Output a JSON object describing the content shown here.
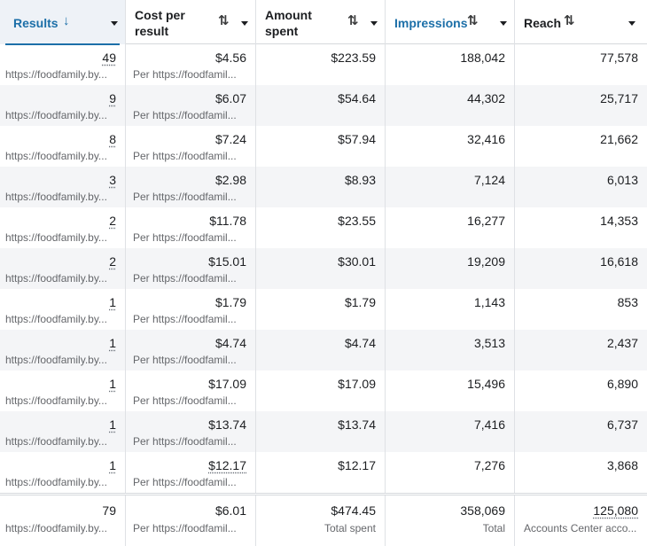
{
  "header": {
    "columns": [
      {
        "label": "Results",
        "sort_icon": "arrow-down-icon"
      },
      {
        "label": "Cost per result",
        "sort_icon": "sort-up-down-icon"
      },
      {
        "label": "Amount spent",
        "sort_icon": "sort-up-down-icon"
      },
      {
        "label": "Impressions",
        "sort_icon": "sort-up-down-icon"
      },
      {
        "label": "Reach",
        "sort_icon": "sort-up-down-icon"
      }
    ],
    "arrow_down": "↓",
    "sort_glyph": "⇅"
  },
  "rows": [
    {
      "results": "49",
      "results_sub": "https://foodfamily.by...",
      "cost": "$4.56",
      "cost_sub": "Per https://foodfamil...",
      "spent": "$223.59",
      "impressions": "188,042",
      "reach": "77,578"
    },
    {
      "results": "9",
      "results_sub": "https://foodfamily.by...",
      "cost": "$6.07",
      "cost_sub": "Per https://foodfamil...",
      "spent": "$54.64",
      "impressions": "44,302",
      "reach": "25,717"
    },
    {
      "results": "8",
      "results_sub": "https://foodfamily.by...",
      "cost": "$7.24",
      "cost_sub": "Per https://foodfamil...",
      "spent": "$57.94",
      "impressions": "32,416",
      "reach": "21,662"
    },
    {
      "results": "3",
      "results_sub": "https://foodfamily.by...",
      "cost": "$2.98",
      "cost_sub": "Per https://foodfamil...",
      "spent": "$8.93",
      "impressions": "7,124",
      "reach": "6,013"
    },
    {
      "results": "2",
      "results_sub": "https://foodfamily.by...",
      "cost": "$11.78",
      "cost_sub": "Per https://foodfamil...",
      "spent": "$23.55",
      "impressions": "16,277",
      "reach": "14,353"
    },
    {
      "results": "2",
      "results_sub": "https://foodfamily.by...",
      "cost": "$15.01",
      "cost_sub": "Per https://foodfamil...",
      "spent": "$30.01",
      "impressions": "19,209",
      "reach": "16,618"
    },
    {
      "results": "1",
      "results_sub": "https://foodfamily.by...",
      "cost": "$1.79",
      "cost_sub": "Per https://foodfamil...",
      "spent": "$1.79",
      "impressions": "1,143",
      "reach": "853"
    },
    {
      "results": "1",
      "results_sub": "https://foodfamily.by...",
      "cost": "$4.74",
      "cost_sub": "Per https://foodfamil...",
      "spent": "$4.74",
      "impressions": "3,513",
      "reach": "2,437"
    },
    {
      "results": "1",
      "results_sub": "https://foodfamily.by...",
      "cost": "$17.09",
      "cost_sub": "Per https://foodfamil...",
      "spent": "$17.09",
      "impressions": "15,496",
      "reach": "6,890"
    },
    {
      "results": "1",
      "results_sub": "https://foodfamily.by...",
      "cost": "$13.74",
      "cost_sub": "Per https://foodfamil...",
      "spent": "$13.74",
      "impressions": "7,416",
      "reach": "6,737"
    },
    {
      "results": "1",
      "results_sub": "https://foodfamily.by...",
      "cost": "$12.17",
      "cost_sub": "Per https://foodfamil...",
      "spent": "$12.17",
      "impressions": "7,276",
      "reach": "3,868"
    }
  ],
  "totals": {
    "results": "79",
    "results_sub": "https://foodfamily.by...",
    "cost": "$6.01",
    "cost_sub": "Per https://foodfamil...",
    "spent": "$474.45",
    "spent_sub": "Total spent",
    "impressions": "358,069",
    "impressions_sub": "Total",
    "reach": "125,080",
    "reach_sub": "Accounts Center acco..."
  },
  "colors": {
    "accent": "#1c6fa8",
    "row_alt": "#f4f5f7"
  }
}
